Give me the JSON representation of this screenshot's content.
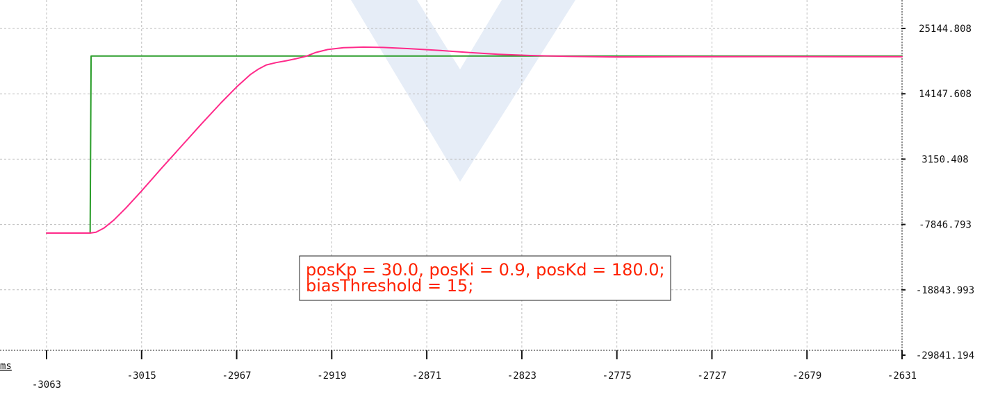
{
  "chart_data": {
    "type": "line",
    "x_unit": "ms",
    "x_ticks": [
      -3063,
      -3015,
      -2967,
      -2919,
      -2871,
      -2823,
      -2775,
      -2727,
      -2679,
      -2631
    ],
    "y_ticks": [
      "25144.808",
      "14147.608",
      "3150.408",
      "-7846.793",
      "-18843.993",
      "-29841.194"
    ],
    "xlim": [
      -3063,
      -2631
    ],
    "ylim": [
      -29841.194,
      25144.808
    ],
    "grid": true,
    "colors": {
      "target": "#2a9d2a",
      "actual": "#ff2a8a",
      "annotation": "#ff2200",
      "watermark": "#e6edf7"
    },
    "series": [
      {
        "key": "target",
        "points": [
          [
            -3063,
            -9300
          ],
          [
            -3041,
            -9300
          ],
          [
            -3040.5,
            20500
          ],
          [
            -2631,
            20500
          ]
        ]
      },
      {
        "key": "actual",
        "points": [
          [
            -3063,
            -9300
          ],
          [
            -3041,
            -9300
          ],
          [
            -3038,
            -9150
          ],
          [
            -3034,
            -8450
          ],
          [
            -3029,
            -7100
          ],
          [
            -3023,
            -5100
          ],
          [
            -3015,
            -2200
          ],
          [
            -3005,
            1600
          ],
          [
            -2995,
            5300
          ],
          [
            -2985,
            9000
          ],
          [
            -2975,
            12600
          ],
          [
            -2967,
            15300
          ],
          [
            -2960,
            17400
          ],
          [
            -2956,
            18300
          ],
          [
            -2952,
            19000
          ],
          [
            -2947,
            19400
          ],
          [
            -2942,
            19700
          ],
          [
            -2937,
            20050
          ],
          [
            -2932,
            20450
          ],
          [
            -2927,
            21100
          ],
          [
            -2921,
            21600
          ],
          [
            -2913,
            21900
          ],
          [
            -2903,
            22000
          ],
          [
            -2893,
            21950
          ],
          [
            -2880,
            21750
          ],
          [
            -2865,
            21450
          ],
          [
            -2850,
            21100
          ],
          [
            -2835,
            20800
          ],
          [
            -2820,
            20600
          ],
          [
            -2800,
            20450
          ],
          [
            -2775,
            20350
          ],
          [
            -2740,
            20380
          ],
          [
            -2700,
            20400
          ],
          [
            -2660,
            20380
          ],
          [
            -2631,
            20380
          ]
        ]
      }
    ],
    "annotation": {
      "lines": [
        "posKp = 30.0, posKi = 0.9, posKd = 180.0;",
        "biasThreshold = 15;"
      ]
    }
  }
}
